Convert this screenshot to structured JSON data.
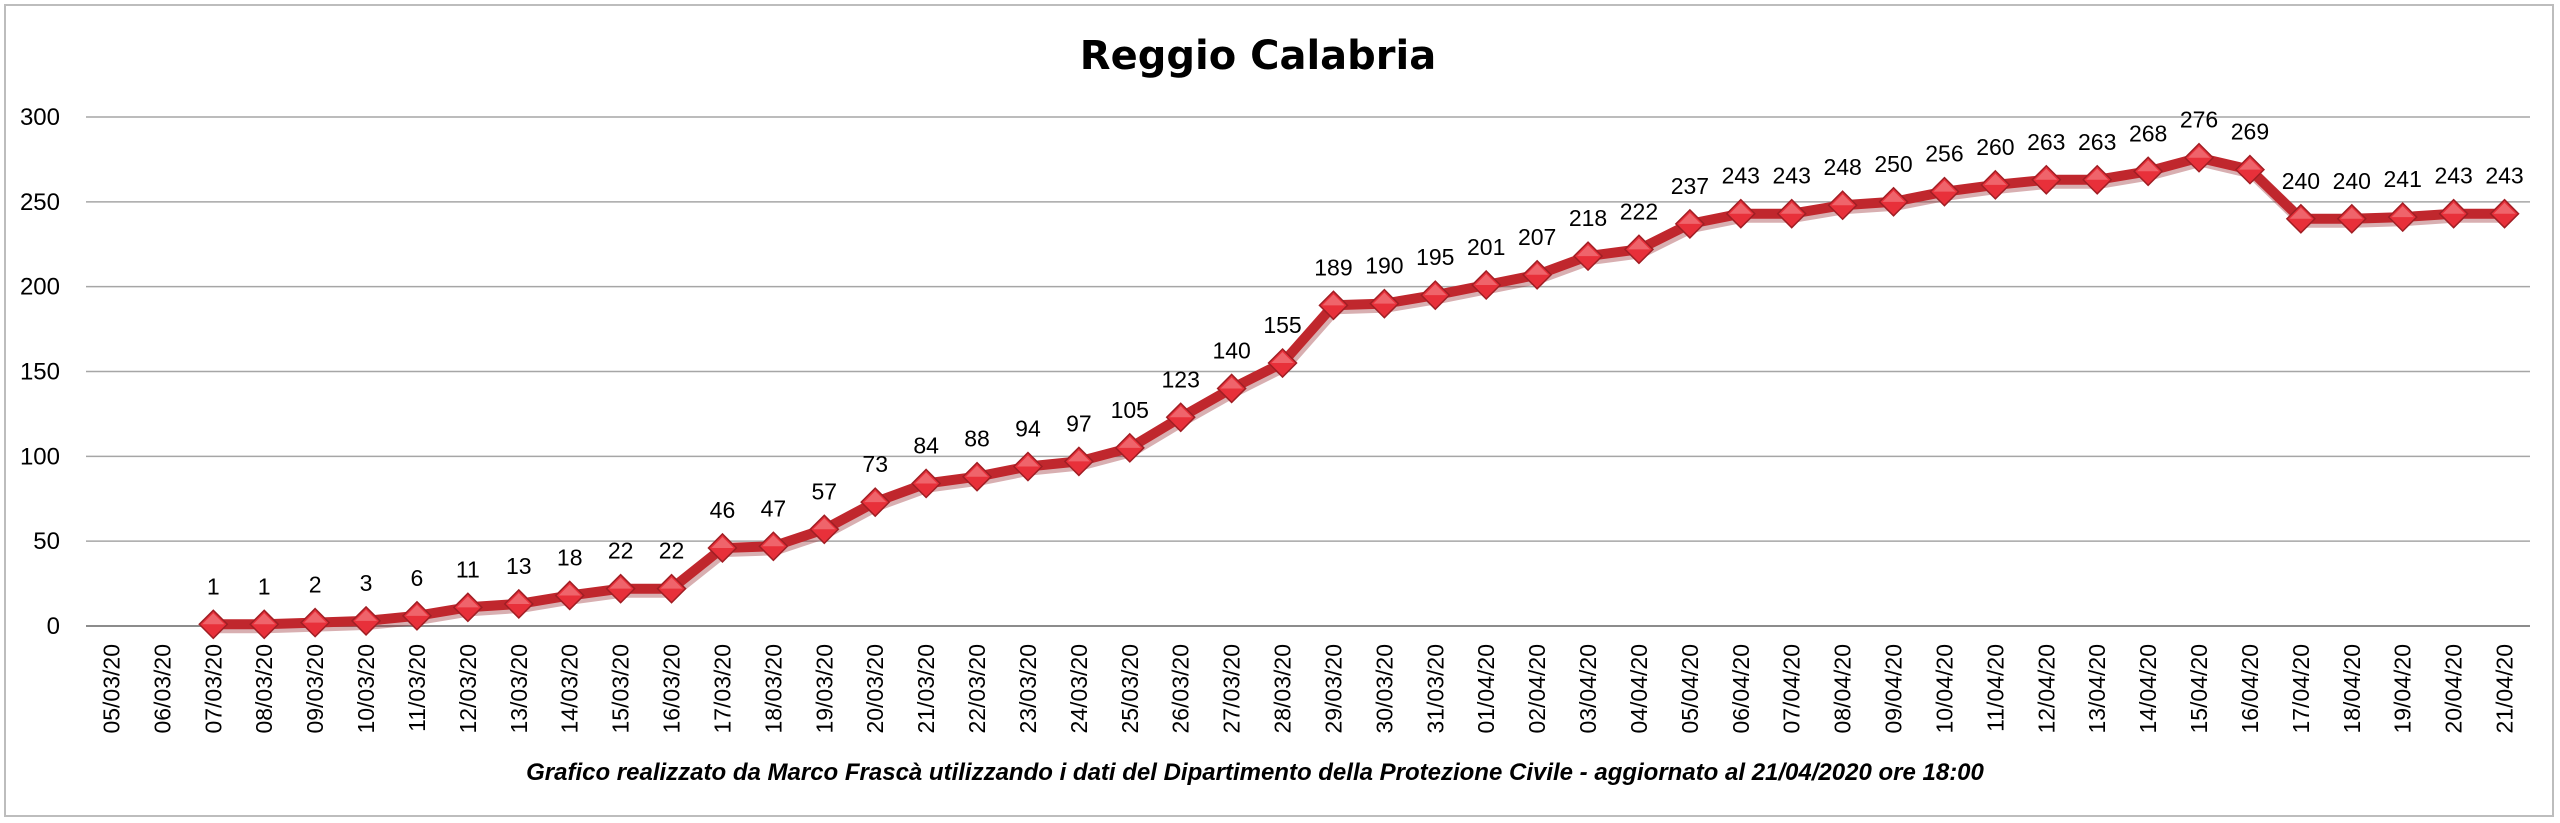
{
  "chart_data": {
    "type": "line",
    "title": "Reggio Calabria",
    "footer": "Grafico  realizzato da Marco Frascà  utilizzando i dati del Dipartimento  della Protezione Civile - aggiornato al 21/04/2020 ore 18:00",
    "ylim": [
      0,
      300
    ],
    "yticks": [
      "0",
      "50",
      "100",
      "150",
      "200",
      "250",
      "300"
    ],
    "grid": true,
    "line_color": "#c0272d",
    "marker_color": "#e8303a",
    "categories": [
      "05/03/20",
      "06/03/20",
      "07/03/20",
      "08/03/20",
      "09/03/20",
      "10/03/20",
      "11/03/20",
      "12/03/20",
      "13/03/20",
      "14/03/20",
      "15/03/20",
      "16/03/20",
      "17/03/20",
      "18/03/20",
      "19/03/20",
      "20/03/20",
      "21/03/20",
      "22/03/20",
      "23/03/20",
      "24/03/20",
      "25/03/20",
      "26/03/20",
      "27/03/20",
      "28/03/20",
      "29/03/20",
      "30/03/20",
      "31/03/20",
      "01/04/20",
      "02/04/20",
      "03/04/20",
      "04/04/20",
      "05/04/20",
      "06/04/20",
      "07/04/20",
      "08/04/20",
      "09/04/20",
      "10/04/20",
      "11/04/20",
      "12/04/20",
      "13/04/20",
      "14/04/20",
      "15/04/20",
      "16/04/20",
      "17/04/20",
      "18/04/20",
      "19/04/20",
      "20/04/20",
      "21/04/20"
    ],
    "values": [
      null,
      null,
      1,
      1,
      2,
      3,
      6,
      11,
      13,
      18,
      22,
      22,
      46,
      47,
      57,
      73,
      84,
      88,
      94,
      97,
      105,
      123,
      140,
      155,
      189,
      190,
      195,
      201,
      207,
      218,
      222,
      237,
      243,
      243,
      248,
      250,
      256,
      260,
      263,
      263,
      268,
      276,
      269,
      240,
      240,
      241,
      243,
      243
    ]
  }
}
